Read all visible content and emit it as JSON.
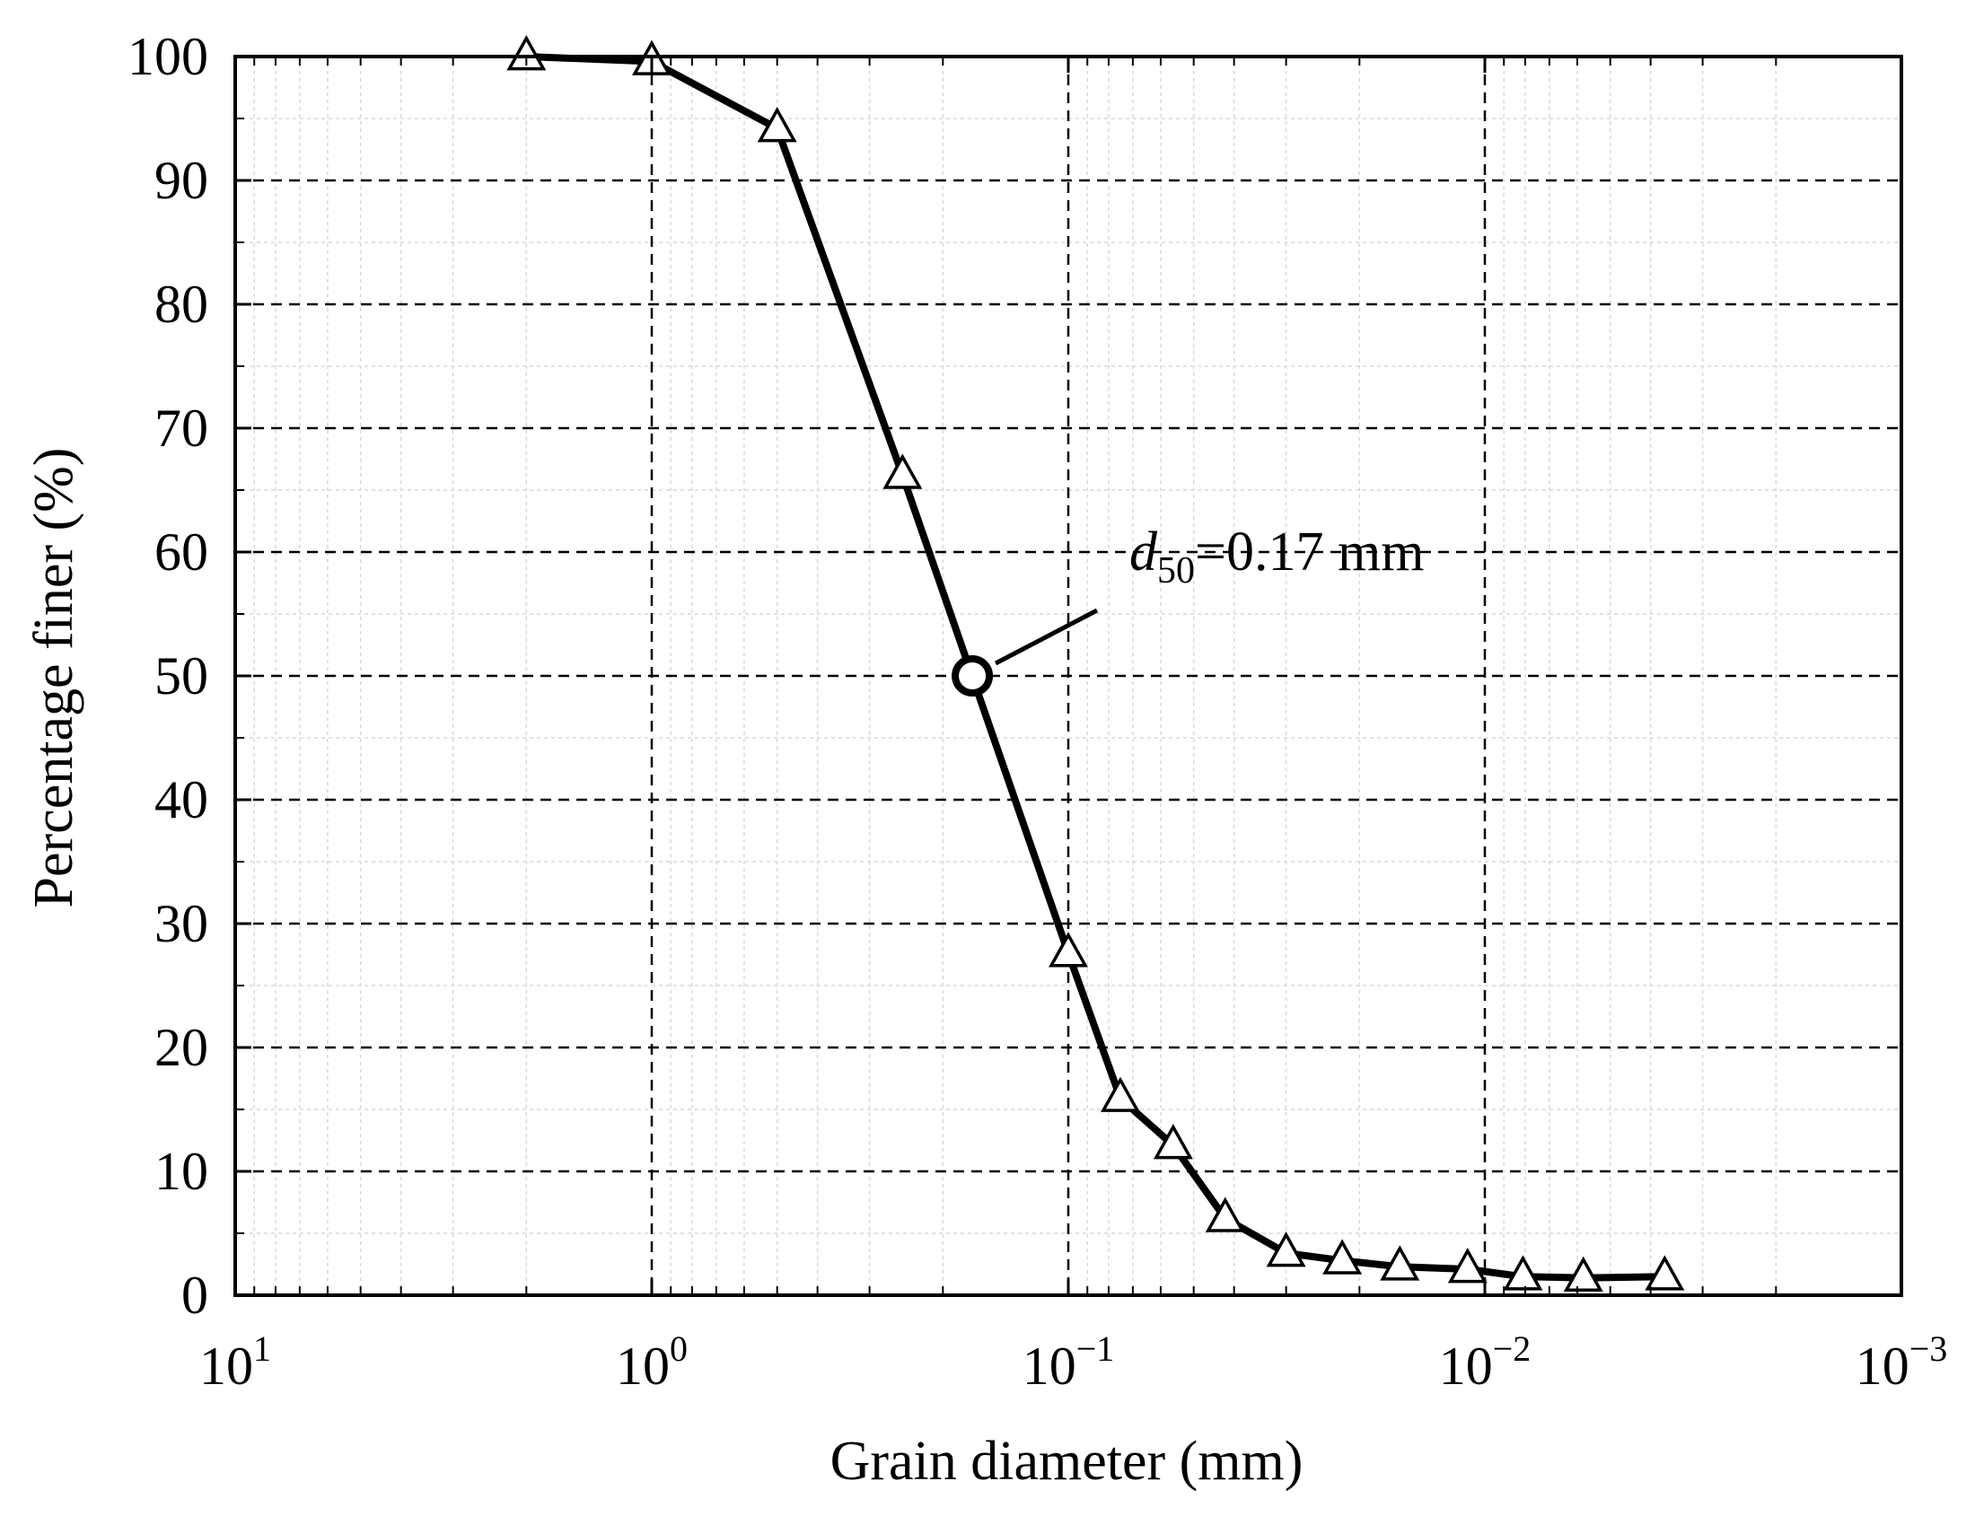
{
  "chart_data": {
    "type": "line",
    "xlabel": "Grain diameter (mm)",
    "ylabel": "Percentage finer (%)",
    "x_scale": "log",
    "x_reversed": true,
    "xlim": [
      10,
      0.001
    ],
    "ylim": [
      0,
      100
    ],
    "x_ticks": [
      {
        "value": 10,
        "base": "10",
        "exp": "1"
      },
      {
        "value": 1,
        "base": "10",
        "exp": "0"
      },
      {
        "value": 0.1,
        "base": "10",
        "exp": "−1"
      },
      {
        "value": 0.01,
        "base": "10",
        "exp": "−2"
      },
      {
        "value": 0.001,
        "base": "10",
        "exp": "−3"
      }
    ],
    "y_ticks": [
      0,
      10,
      20,
      30,
      40,
      50,
      60,
      70,
      80,
      90,
      100
    ],
    "grid": "major dashed, minor dotted",
    "series": [
      {
        "marker": "open-triangle",
        "color": "#000000",
        "x": [
          2,
          1,
          0.5,
          0.25,
          0.1,
          0.075,
          0.056,
          0.042,
          0.03,
          0.022,
          0.016,
          0.011,
          0.0081,
          0.0058,
          0.0037
        ],
        "y": [
          100,
          99.6,
          94.2,
          66.2,
          27.6,
          15.9,
          12.1,
          6.2,
          3.4,
          2.8,
          2.3,
          2.1,
          1.5,
          1.4,
          1.5
        ]
      }
    ],
    "annotation": {
      "point": {
        "x": 0.17,
        "y": 50
      },
      "marker": "open-circle",
      "text_var": "d",
      "text_sub": "50",
      "text_rest": "=0.17 mm"
    }
  }
}
